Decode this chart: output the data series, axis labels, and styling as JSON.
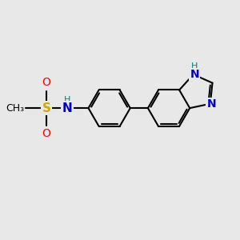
{
  "background_color": "#e8e8e8",
  "bond_color": "#000000",
  "bond_width": 1.5,
  "dbo": 0.08,
  "N_color": "#0000cc",
  "S_color": "#ccaa00",
  "O_color": "#ff0000",
  "C_color": "#000000",
  "font_size": 9,
  "xlim": [
    0,
    10
  ],
  "ylim": [
    0,
    10
  ]
}
